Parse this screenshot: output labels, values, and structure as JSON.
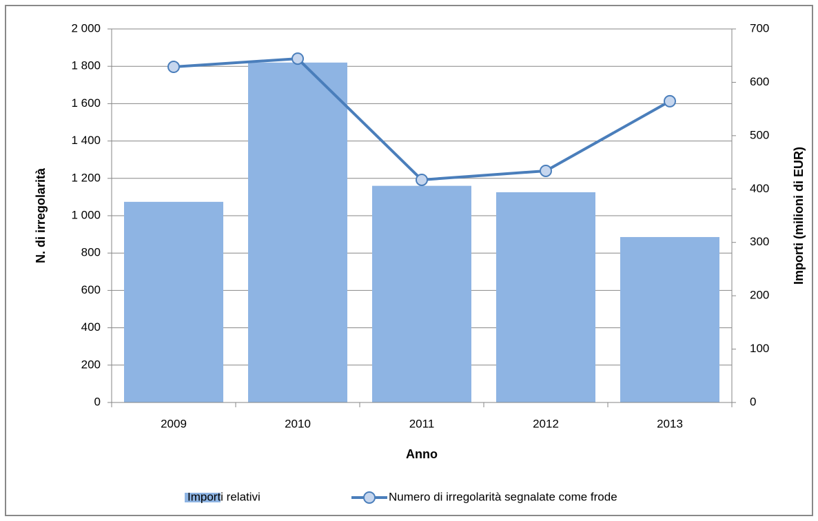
{
  "chart_data": {
    "type": "combo",
    "xlabel": "Anno",
    "ylabel": "N. di irregolarità",
    "y2label": "Importi (milioni di EUR)",
    "categories": [
      "2009",
      "2010",
      "2011",
      "2012",
      "2013"
    ],
    "series": [
      {
        "name": "Importi relativi",
        "type": "bar",
        "axis": "y2",
        "color": "#8eb4e3",
        "values": [
          376,
          637,
          406,
          394,
          310
        ]
      },
      {
        "name": "Numero di irregolarità segnalate come frode",
        "type": "line",
        "color": "#4a7ebb",
        "values": [
          1797,
          1841,
          1192,
          1240,
          1613
        ]
      }
    ],
    "ylim": [
      0,
      2000
    ],
    "yticks": [
      0,
      200,
      400,
      600,
      800,
      {
        "value": 1000,
        "label": "1 000"
      },
      {
        "value": 1200,
        "label": "1 200"
      },
      {
        "value": 1400,
        "label": "1 400"
      },
      {
        "value": 1600,
        "label": "1 600"
      },
      {
        "value": 1800,
        "label": "1 800"
      },
      {
        "value": 2000,
        "label": "2 000"
      }
    ],
    "y2lim": [
      0,
      700
    ],
    "y2ticks": [
      0,
      100,
      200,
      300,
      400,
      500,
      600,
      700
    ],
    "grid": true,
    "legend": "bottom"
  }
}
